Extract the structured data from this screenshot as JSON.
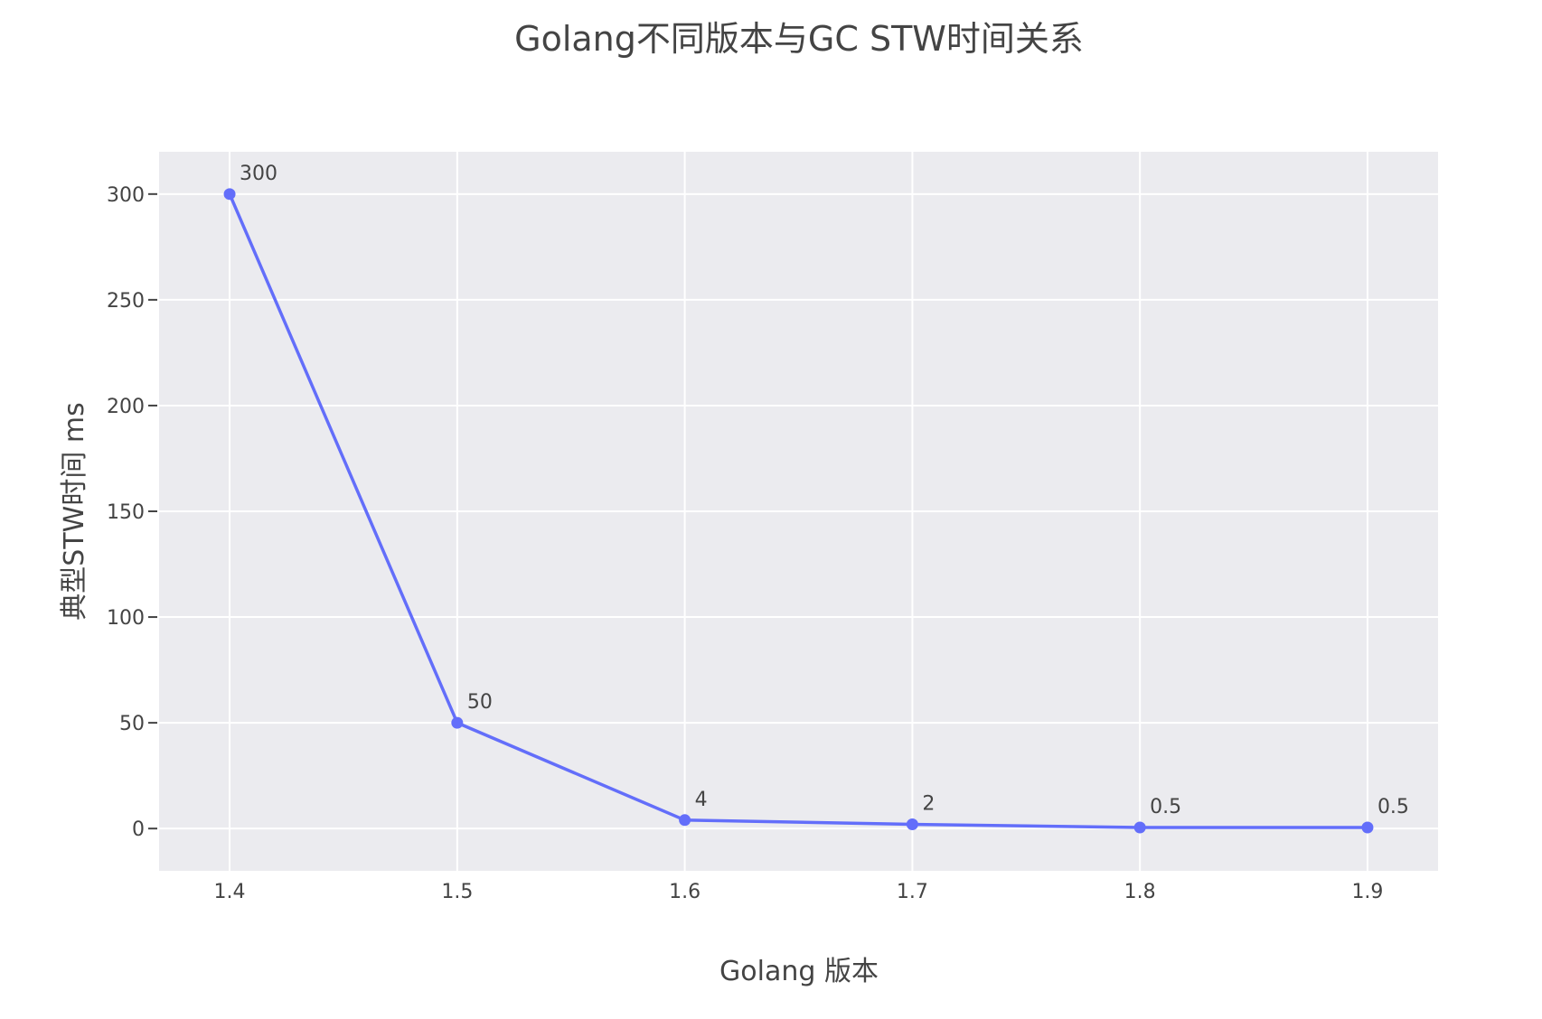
{
  "chart_data": {
    "type": "line",
    "title": "Golang不同版本与GC STW时间关系",
    "xlabel": "Golang 版本",
    "ylabel": "典型STW时间 ms",
    "x": [
      1.4,
      1.5,
      1.6,
      1.7,
      1.8,
      1.9
    ],
    "x_tick_labels": [
      "1.4",
      "1.5",
      "1.6",
      "1.7",
      "1.8",
      "1.9"
    ],
    "series": [
      {
        "values": [
          300,
          50,
          4,
          2,
          0.5,
          0.5
        ],
        "data_labels": [
          "300",
          "50",
          "4",
          "2",
          "0.5",
          "0.5"
        ]
      }
    ],
    "xlim": [
      1.369,
      1.931
    ],
    "ylim": [
      -20,
      320
    ],
    "y_ticks": [
      0,
      50,
      100,
      150,
      200,
      250,
      300
    ],
    "y_tick_labels": [
      "0",
      "50",
      "100",
      "150",
      "200",
      "250",
      "300"
    ],
    "grid": true,
    "legend": "none",
    "colors": {
      "line": "#636efa",
      "plot_background": "#ebebef",
      "gridline": "#ffffff",
      "text": "#444444"
    }
  }
}
